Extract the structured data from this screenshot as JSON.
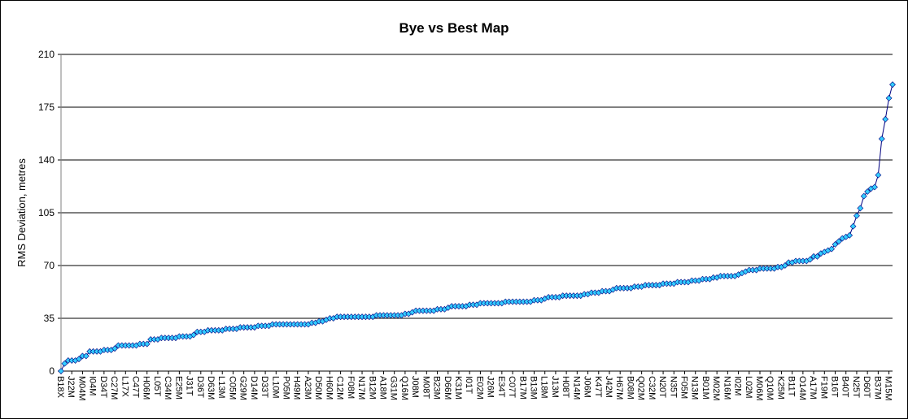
{
  "chart_data": {
    "type": "line",
    "title": "Bye vs Best Map",
    "y_label": "RMS Deviation, metres",
    "categories": [
      "B18X",
      null,
      null,
      "J22M",
      null,
      null,
      "M04M",
      null,
      null,
      "I04M",
      null,
      null,
      "D34T",
      null,
      null,
      "C27M",
      null,
      null,
      "L17X",
      null,
      null,
      "C47T",
      null,
      null,
      "H06M",
      null,
      null,
      "L05T",
      null,
      null,
      "C34M",
      null,
      null,
      "E25M",
      null,
      null,
      "J31T",
      null,
      null,
      "D36T",
      null,
      null,
      "D63M",
      null,
      null,
      "L13M",
      null,
      null,
      "C05M",
      null,
      null,
      "G29M",
      null,
      null,
      "D14M",
      null,
      null,
      "D33T",
      null,
      null,
      "L10M",
      null,
      null,
      "P05M",
      null,
      null,
      "H49M",
      null,
      null,
      "A23M",
      null,
      null,
      "D50M",
      null,
      null,
      "H60M",
      null,
      null,
      "C12M",
      null,
      null,
      "F08M",
      null,
      null,
      "N17M",
      null,
      null,
      "B12M",
      null,
      null,
      "A18M",
      null,
      null,
      "G31M",
      null,
      null,
      "Q16M",
      null,
      null,
      "J08M",
      null,
      null,
      "M08T",
      null,
      null,
      "B23M",
      null,
      null,
      "D66M",
      null,
      null,
      "K31M",
      null,
      null,
      "I01T",
      null,
      null,
      "E02M",
      null,
      null,
      "J26M",
      null,
      null,
      "E34T",
      null,
      null,
      "C07T",
      null,
      null,
      "B17M",
      null,
      null,
      "B13M",
      null,
      null,
      "L18M",
      null,
      null,
      "J13M",
      null,
      null,
      "H08T",
      null,
      null,
      "N14M",
      null,
      null,
      "J06M",
      null,
      null,
      "K47T",
      null,
      null,
      "J42M",
      null,
      null,
      "H67M",
      null,
      null,
      "B08M",
      null,
      null,
      "Q02M",
      null,
      null,
      "C32M",
      null,
      null,
      "N20T",
      null,
      null,
      "N35T",
      null,
      null,
      "F05M",
      null,
      null,
      "N13M",
      null,
      null,
      "B01M",
      null,
      null,
      "M02M",
      null,
      null,
      "N16M",
      null,
      null,
      "I02M",
      null,
      null,
      "L02M",
      null,
      null,
      "M06M",
      null,
      null,
      "Q10M",
      null,
      null,
      "K25M",
      null,
      null,
      "B11T",
      null,
      null,
      "O14M",
      null,
      null,
      "A17M",
      null,
      null,
      "F19M",
      null,
      null,
      "B16T",
      null,
      null,
      "B40T",
      null,
      null,
      "N25T",
      null,
      null,
      "D60T",
      null,
      null,
      "B37M",
      null,
      null,
      "M15M",
      null
    ],
    "values": [
      0,
      5,
      7,
      7,
      7,
      8,
      10,
      10,
      13,
      13,
      13,
      13,
      14,
      14,
      14,
      15,
      17,
      17,
      17,
      17,
      17,
      17,
      18,
      18,
      18,
      21,
      21,
      21,
      22,
      22,
      22,
      22,
      22,
      23,
      23,
      23,
      23,
      24,
      26,
      26,
      26,
      27,
      27,
      27,
      27,
      27,
      28,
      28,
      28,
      28,
      29,
      29,
      29,
      29,
      29,
      30,
      30,
      30,
      30,
      31,
      31,
      31,
      31,
      31,
      31,
      31,
      31,
      31,
      31,
      31,
      32,
      32,
      33,
      33,
      34,
      35,
      35,
      36,
      36,
      36,
      36,
      36,
      36,
      36,
      36,
      36,
      36,
      36,
      37,
      37,
      37,
      37,
      37,
      37,
      37,
      37,
      38,
      38,
      39,
      40,
      40,
      40,
      40,
      40,
      40,
      41,
      41,
      41,
      42,
      43,
      43,
      43,
      43,
      43,
      44,
      44,
      44,
      45,
      45,
      45,
      45,
      45,
      45,
      45,
      46,
      46,
      46,
      46,
      46,
      46,
      46,
      46,
      47,
      47,
      47,
      48,
      49,
      49,
      49,
      49,
      50,
      50,
      50,
      50,
      50,
      50,
      51,
      51,
      52,
      52,
      52,
      53,
      53,
      53,
      54,
      55,
      55,
      55,
      55,
      55,
      56,
      56,
      56,
      57,
      57,
      57,
      57,
      57,
      58,
      58,
      58,
      58,
      59,
      59,
      59,
      59,
      60,
      60,
      60,
      61,
      61,
      61,
      62,
      62,
      63,
      63,
      63,
      63,
      63,
      64,
      65,
      66,
      67,
      67,
      67,
      68,
      68,
      68,
      68,
      68,
      69,
      69,
      70,
      72,
      72,
      73,
      73,
      73,
      73,
      74,
      76,
      76,
      78,
      79,
      80,
      81,
      84,
      86,
      88,
      89,
      90,
      96,
      103,
      108,
      116,
      119,
      121,
      122,
      130,
      154,
      167,
      181,
      190
    ],
    "color": "#000080",
    "marker_color": "#33ccff",
    "ylim": [
      0,
      210
    ],
    "yticks": [
      0,
      35,
      70,
      105,
      140,
      175,
      210
    ],
    "grid": true
  }
}
